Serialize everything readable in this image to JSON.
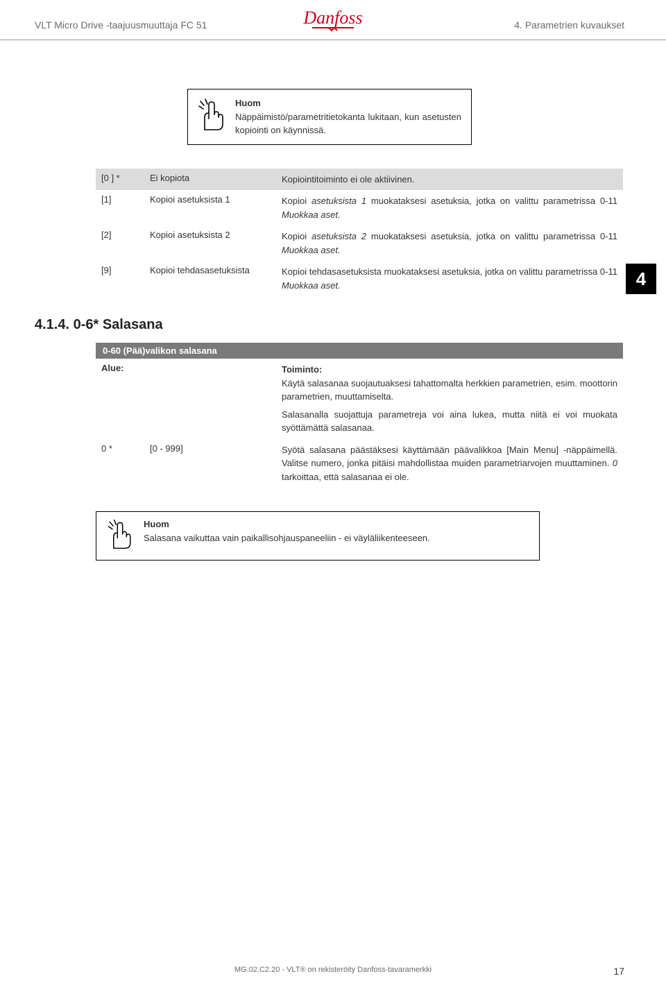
{
  "header": {
    "left": "VLT Micro Drive -taajuusmuuttaja FC 51",
    "right": "4. Parametrien kuvaukset",
    "logo_text": "Danfoss",
    "logo_color": "#d3001b"
  },
  "note1": {
    "title": "Huom",
    "body": "Näppäimistö/parametritietokanta lukitaan, kun asetusten kopiointi on käynnissä."
  },
  "options": [
    {
      "code": "[0 ] *",
      "label": "Ei kopiota",
      "desc_plain": "Kopiointitoiminto ei ole aktiivinen.",
      "grey": true
    },
    {
      "code": "[1]",
      "label": "Kopioi asetuksista 1",
      "desc_html": "Kopioi <em>asetuksista 1</em> muokataksesi asetuksia, jotka on valittu parametrissa 0-11 <em>Muokkaa aset.</em>"
    },
    {
      "code": "[2]",
      "label": "Kopioi asetuksista 2",
      "desc_html": "Kopioi <em>asetuksista 2</em> muokataksesi asetuksia, jotka on valittu parametrissa 0-11 <em>Muokkaa aset.</em>"
    },
    {
      "code": "[9]",
      "label": "Kopioi tehdasasetuksista",
      "desc_html": "Kopioi tehdasasetuksista muokataksesi asetuksia, jotka on valittu parametrissa 0-11 <em>Muokkaa aset.</em>"
    }
  ],
  "tab4": "4",
  "section_title": "4.1.4. 0-6* Salasana",
  "param": {
    "header": "0-60 (Pää)valikon salasana",
    "row1_c1": "Alue:",
    "row1_c3_label": "Toiminto:",
    "row1_c3_p1": "Käytä salasanaa suojautuaksesi tahattomalta herkkien parametrien, esim. moottorin parametrien, muuttamiselta.",
    "row1_c3_p2": "Salasanalla suojattuja parametreja voi aina lukea, mutta niitä ei voi muokata syöttämättä salasanaa.",
    "row2_c1": "0 *",
    "row2_c2": "[0 - 999]",
    "row2_c3_html": "Syötä salasana päästäksesi käyttämään päävalikkoa [Main Menu] -näppäimellä. Valitse numero, jonka pitäisi mahdollistaa muiden parametriarvojen muuttaminen. <em>0</em> tarkoittaa, että salasanaa ei ole."
  },
  "note2": {
    "title": "Huom",
    "body": "Salasana vaikuttaa vain paikallisohjauspaneeliin - ei väyläliikenteeseen."
  },
  "footer": {
    "center": "MG.02.C2.20 - VLT® on rekisteröity Danfoss-tavaramerkki",
    "page": "17"
  }
}
